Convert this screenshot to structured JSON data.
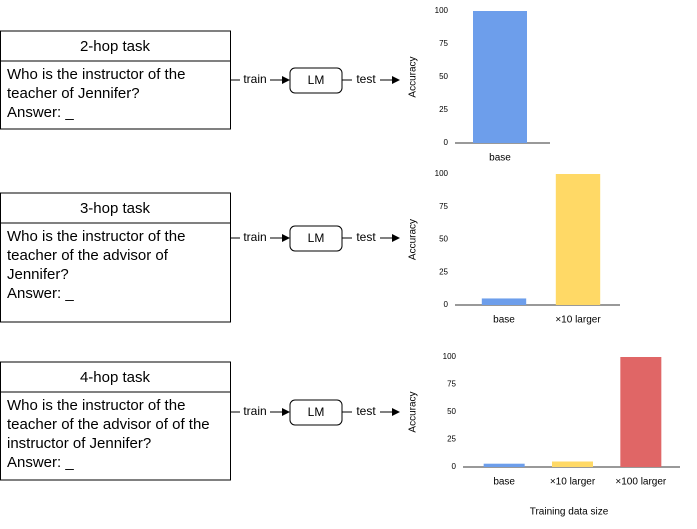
{
  "tasks": [
    {
      "title": "2-hop task",
      "question": [
        "Who is the instructor of the",
        "teacher of Jennifer?",
        "Answer: _"
      ]
    },
    {
      "title": "3-hop task",
      "question": [
        "Who is the instructor of the",
        "teacher of the advisor of",
        "Jennifer?",
        "Answer: _"
      ]
    },
    {
      "title": "4-hop task",
      "question": [
        "Who is the instructor of the",
        "teacher of the advisor of of the",
        "instructor of Jennifer?",
        "Answer: _"
      ]
    }
  ],
  "pipeline": {
    "train": "train",
    "model": "LM",
    "test": "test"
  },
  "chart_data": [
    {
      "type": "bar",
      "ylabel": "Accuracy",
      "categories": [
        "base"
      ],
      "values": [
        100
      ],
      "colors": [
        "#6d9eeb"
      ],
      "ylim": [
        0,
        100
      ],
      "yticks": [
        0,
        25,
        50,
        75,
        100
      ]
    },
    {
      "type": "bar",
      "ylabel": "Accuracy",
      "categories": [
        "base",
        "×10 larger"
      ],
      "values": [
        5,
        100
      ],
      "colors": [
        "#6d9eeb",
        "#ffd966"
      ],
      "ylim": [
        0,
        100
      ],
      "yticks": [
        0,
        25,
        50,
        75,
        100
      ]
    },
    {
      "type": "bar",
      "ylabel": "Accuracy",
      "xlabel": "Training data size",
      "categories": [
        "base",
        "×10 larger",
        "×100 larger"
      ],
      "values": [
        3,
        5,
        100
      ],
      "colors": [
        "#6d9eeb",
        "#ffd966",
        "#e06666"
      ],
      "ylim": [
        0,
        100
      ],
      "yticks": [
        0,
        25,
        50,
        75,
        100
      ]
    }
  ]
}
